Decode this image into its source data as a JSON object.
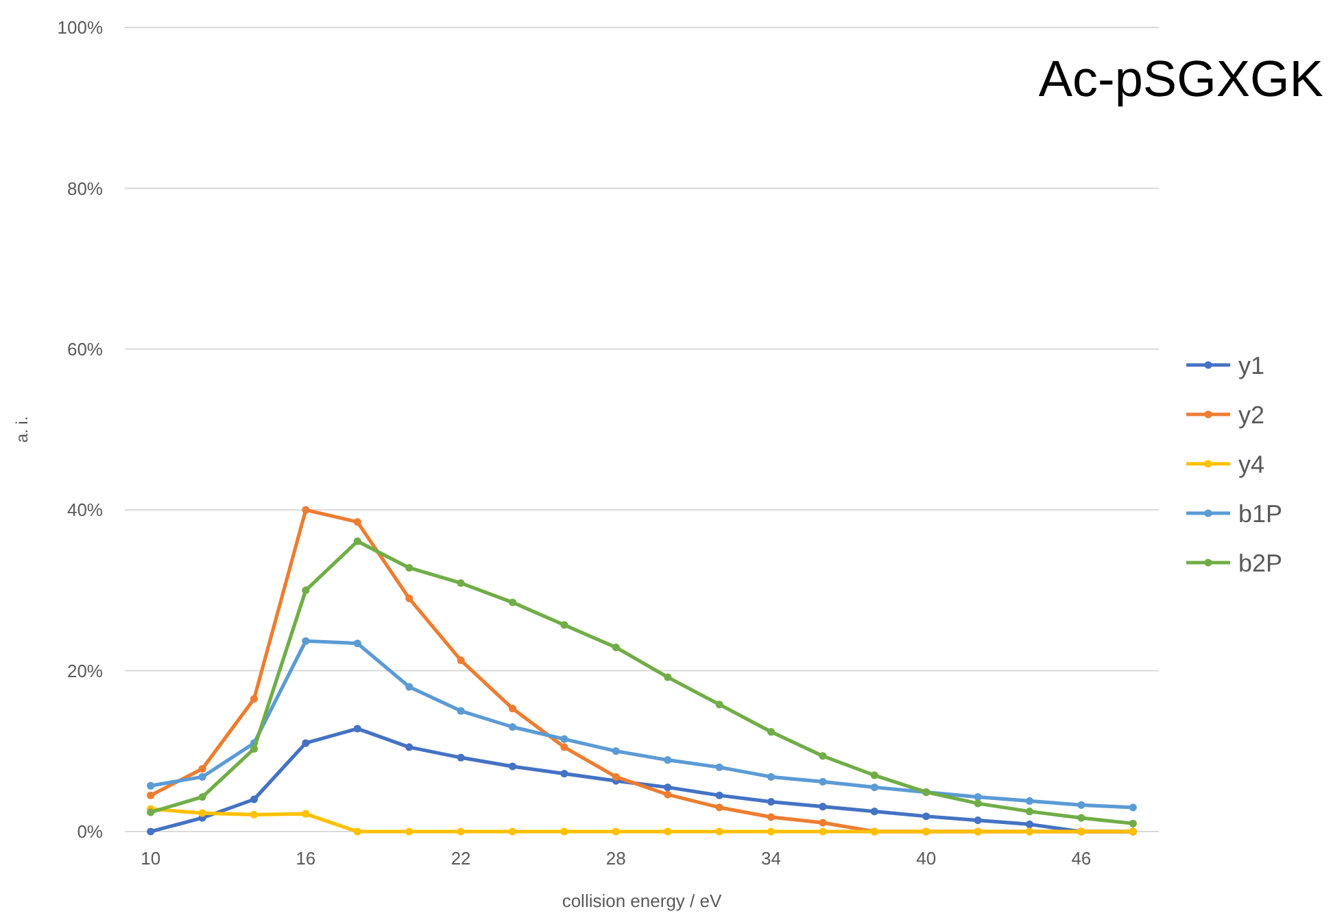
{
  "chart_data": {
    "type": "line",
    "title": "Ac-pSGXGK",
    "xlabel": "collision energy / eV",
    "ylabel": "a. i.",
    "x": [
      10,
      12,
      14,
      16,
      18,
      20,
      22,
      24,
      26,
      28,
      30,
      32,
      34,
      36,
      38,
      40,
      42,
      44,
      46,
      48
    ],
    "xlim": [
      9,
      49
    ],
    "xticks": [
      10,
      16,
      22,
      28,
      34,
      40,
      46
    ],
    "ylim": [
      0,
      100
    ],
    "yticks": [
      {
        "value": 0,
        "label": "0%"
      },
      {
        "value": 20,
        "label": "20%"
      },
      {
        "value": 40,
        "label": "40%"
      },
      {
        "value": 60,
        "label": "60%"
      },
      {
        "value": 80,
        "label": "80%"
      },
      {
        "value": 100,
        "label": "100%"
      }
    ],
    "grid": "y",
    "legend": "right",
    "marker": "circle",
    "line_style": "solid",
    "series": [
      {
        "name": "y1",
        "color": "#4472c4",
        "values": [
          0,
          1.7,
          4,
          11,
          12.8,
          10.5,
          9.2,
          8.1,
          7.2,
          6.3,
          5.5,
          4.5,
          3.7,
          3.1,
          2.5,
          1.9,
          1.4,
          0.9,
          0,
          0
        ]
      },
      {
        "name": "y2",
        "color": "#ed7d31",
        "values": [
          4.5,
          7.8,
          16.5,
          40,
          38.5,
          29,
          21.3,
          15.3,
          10.5,
          6.8,
          4.6,
          3,
          1.8,
          1.1,
          0,
          0,
          0,
          0,
          0,
          0
        ]
      },
      {
        "name": "y4",
        "color": "#ffc000",
        "values": [
          2.8,
          2.3,
          2.1,
          2.2,
          0,
          0,
          0,
          0,
          0,
          0,
          0,
          0,
          0,
          0,
          0,
          0,
          0,
          0,
          0,
          0
        ]
      },
      {
        "name": "b1P",
        "color": "#5b9bd5",
        "values": [
          5.7,
          6.8,
          11,
          23.7,
          23.4,
          18,
          15,
          13,
          11.5,
          10,
          8.9,
          8,
          6.8,
          6.2,
          5.5,
          4.9,
          4.3,
          3.8,
          3.3,
          3
        ]
      },
      {
        "name": "b2P",
        "color": "#70ad47",
        "values": [
          2.4,
          4.3,
          10.3,
          30,
          36.1,
          32.8,
          30.9,
          28.5,
          25.7,
          22.9,
          19.2,
          15.8,
          12.4,
          9.4,
          7,
          4.9,
          3.5,
          2.5,
          1.7,
          1
        ]
      }
    ]
  }
}
